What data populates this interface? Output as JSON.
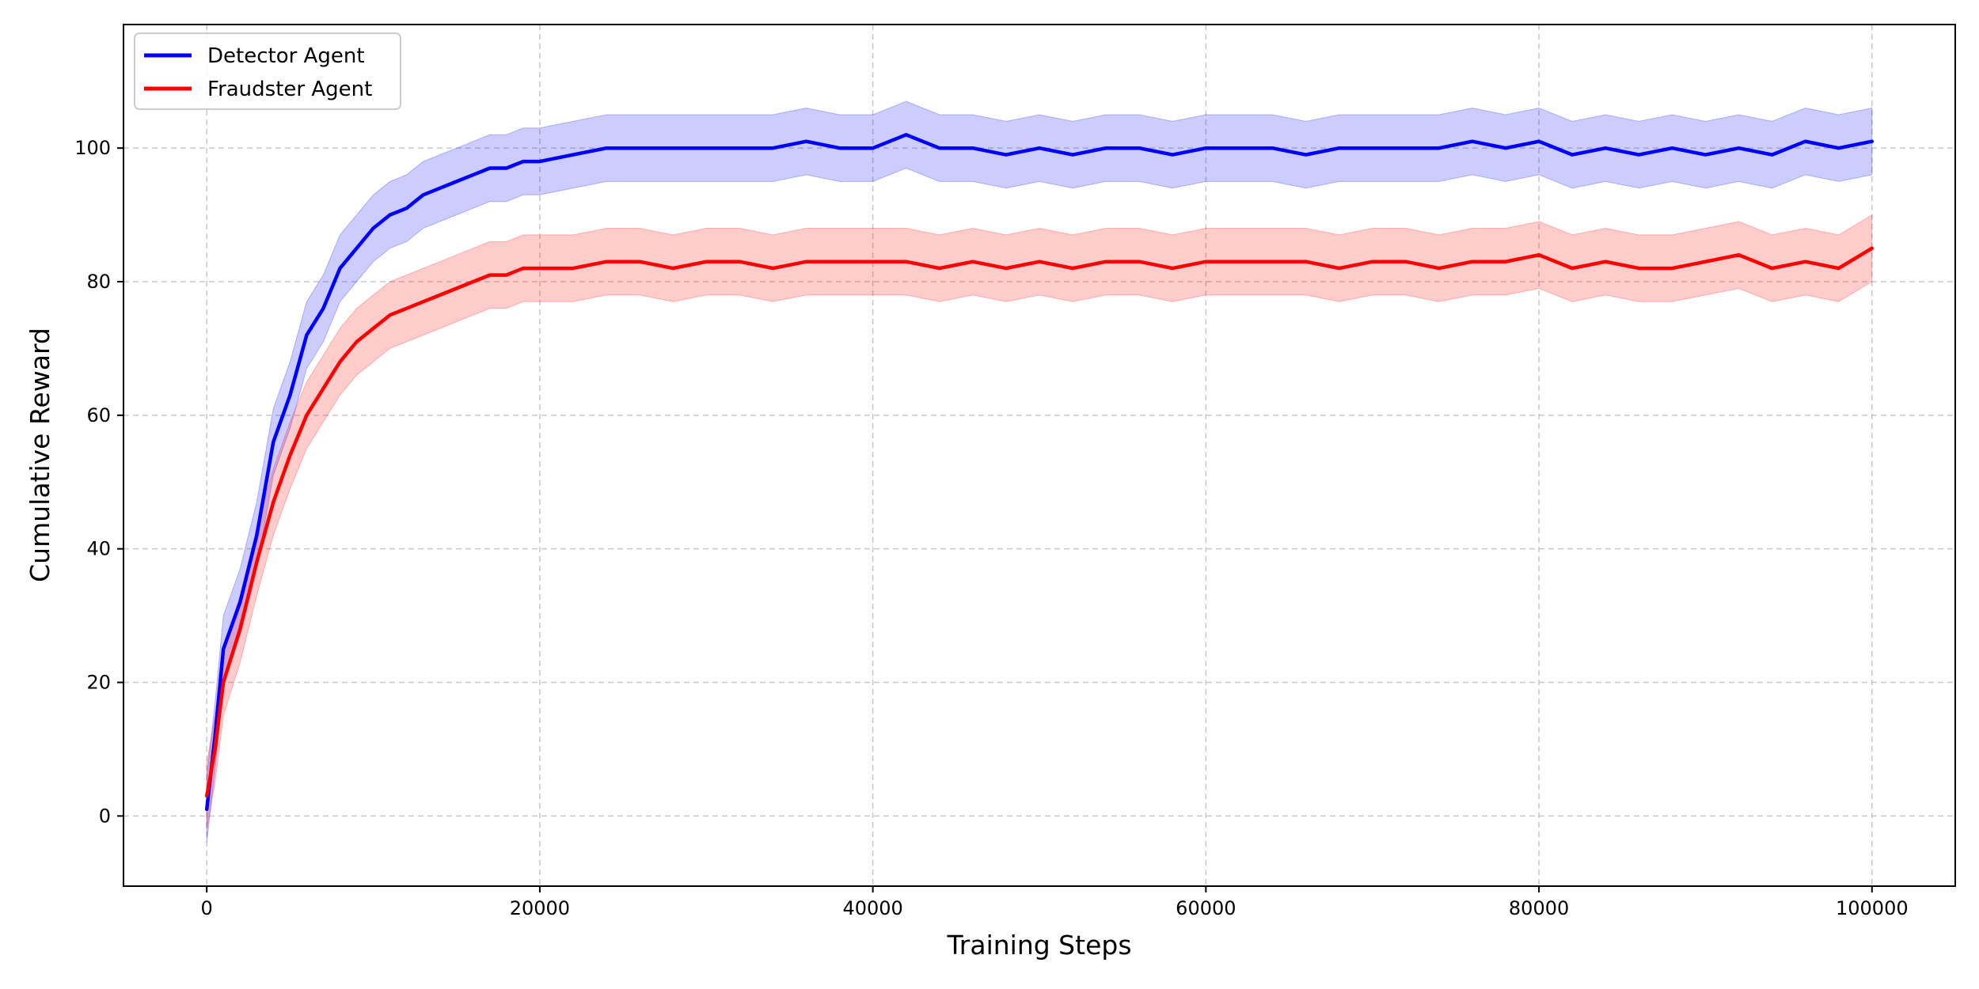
{
  "chart_data": {
    "type": "line",
    "xlabel": "Training Steps",
    "ylabel": "Cumulative Reward",
    "xlim": [
      -5000,
      105000
    ],
    "ylim": [
      -10.5,
      118.5
    ],
    "x_ticks": [
      0,
      20000,
      40000,
      60000,
      80000,
      100000
    ],
    "y_ticks": [
      0,
      20,
      40,
      60,
      80,
      100
    ],
    "grid": true,
    "grid_style": "dashed",
    "legend_position": "top-left",
    "band_halfwidth": 5,
    "x": [
      0,
      500,
      1000,
      2000,
      3000,
      4000,
      5000,
      6000,
      7000,
      8000,
      9000,
      10000,
      11000,
      12000,
      13000,
      14000,
      15000,
      16000,
      17000,
      18000,
      19000,
      20000,
      22000,
      24000,
      26000,
      28000,
      30000,
      32000,
      34000,
      36000,
      38000,
      40000,
      42000,
      44000,
      46000,
      48000,
      50000,
      52000,
      54000,
      56000,
      58000,
      60000,
      62000,
      64000,
      66000,
      68000,
      70000,
      72000,
      74000,
      76000,
      78000,
      80000,
      82000,
      84000,
      86000,
      88000,
      90000,
      92000,
      94000,
      96000,
      98000,
      100000
    ],
    "series": [
      {
        "name": "Detector Agent",
        "color": "#0000ff",
        "values": [
          1,
          12,
          25,
          32,
          42,
          56,
          63,
          72,
          76,
          82,
          85,
          88,
          90,
          91,
          93,
          94,
          95,
          96,
          97,
          97,
          98,
          98,
          99,
          100,
          100,
          100,
          100,
          100,
          100,
          101,
          100,
          100,
          102,
          100,
          100,
          99,
          100,
          99,
          100,
          100,
          99,
          100,
          100,
          100,
          99,
          100,
          100,
          100,
          100,
          101,
          100,
          101,
          99,
          100,
          99,
          100,
          99,
          100,
          99,
          101,
          100,
          101
        ]
      },
      {
        "name": "Fraudster Agent",
        "color": "#ff0000",
        "values": [
          3,
          10,
          20,
          28,
          38,
          47,
          54,
          60,
          64,
          68,
          71,
          73,
          75,
          76,
          77,
          78,
          79,
          80,
          81,
          81,
          82,
          82,
          82,
          83,
          83,
          82,
          83,
          83,
          82,
          83,
          83,
          83,
          83,
          82,
          83,
          82,
          83,
          82,
          83,
          83,
          82,
          83,
          83,
          83,
          83,
          82,
          83,
          83,
          82,
          83,
          83,
          84,
          82,
          83,
          82,
          82,
          83,
          84,
          82,
          83,
          82,
          85
        ]
      }
    ]
  }
}
